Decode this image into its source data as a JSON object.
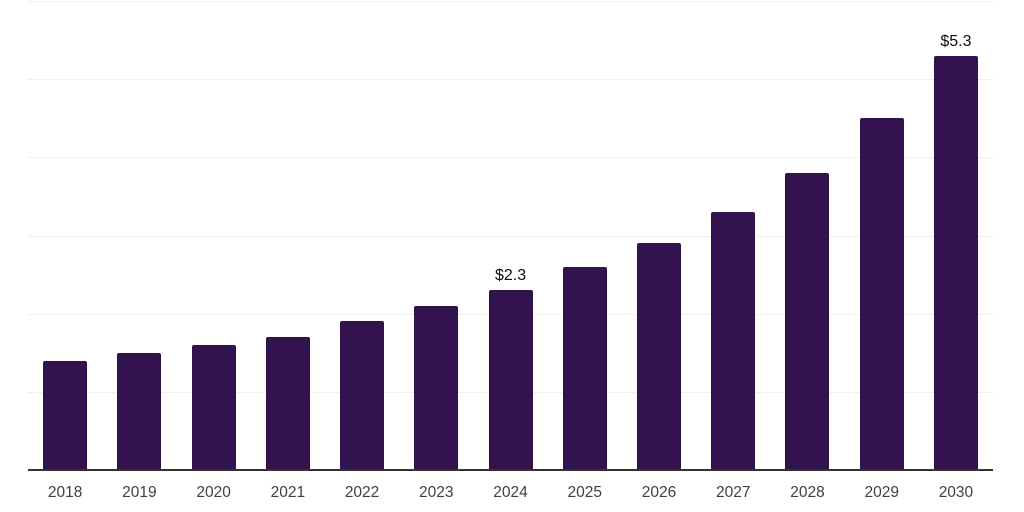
{
  "chart_data": {
    "type": "bar",
    "title": "",
    "xlabel": "",
    "ylabel": "",
    "categories": [
      "2018",
      "2019",
      "2020",
      "2021",
      "2022",
      "2023",
      "2024",
      "2025",
      "2026",
      "2027",
      "2028",
      "2029",
      "2030"
    ],
    "values": [
      1.4,
      1.5,
      1.6,
      1.7,
      1.9,
      2.1,
      2.3,
      2.6,
      2.9,
      3.3,
      3.8,
      4.5,
      5.3
    ],
    "bar_labels": [
      "",
      "",
      "",
      "",
      "",
      "",
      "$2.3",
      "",
      "",
      "",
      "",
      "",
      "$5.3"
    ],
    "ylim": [
      0,
      6
    ],
    "gridline_values": [
      1,
      2,
      3,
      4,
      5,
      6
    ],
    "grid": true,
    "legend_position": "none",
    "y_axis_tick_labels_visible": false
  },
  "colors": {
    "bar": "#33134D",
    "gridline": "#f0f0f0",
    "axis_line": "#333333",
    "x_tick_label": "#3f3f3f",
    "data_label": "#0d0d0d",
    "background": "#ffffff"
  }
}
